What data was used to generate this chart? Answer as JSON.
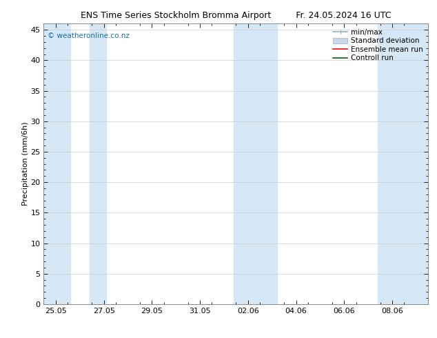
{
  "title_left": "ENS Time Series Stockholm Bromma Airport",
  "title_right": "Fr. 24.05.2024 16 UTC",
  "ylabel": "Precipitation (mm/6h)",
  "yticks": [
    0,
    5,
    10,
    15,
    20,
    25,
    30,
    35,
    40,
    45
  ],
  "ylim": [
    0,
    46
  ],
  "xtick_labels": [
    "25.05",
    "27.05",
    "29.05",
    "31.05",
    "02.06",
    "04.06",
    "06.06",
    "08.06"
  ],
  "xtick_positions": [
    1,
    3,
    5,
    7,
    9,
    11,
    13,
    15
  ],
  "xmin": 0.5,
  "xmax": 16.5,
  "watermark": "© weatheronline.co.nz",
  "watermark_color": "#1a6faf",
  "bg_color": "#ffffff",
  "plot_bg_color": "#ffffff",
  "band_color": "#d6e8f5",
  "bands": [
    [
      0.5,
      1.6
    ],
    [
      2.4,
      3.1
    ],
    [
      8.4,
      9.6
    ],
    [
      9.6,
      10.2
    ],
    [
      14.4,
      16.5
    ]
  ],
  "legend_items": [
    {
      "label": "min/max",
      "color": "#b0c4d8",
      "type": "errorbar"
    },
    {
      "label": "Standard deviation",
      "color": "#c8d8e8",
      "type": "bar"
    },
    {
      "label": "Ensemble mean run",
      "color": "#ff0000",
      "type": "line"
    },
    {
      "label": "Controll run",
      "color": "#008000",
      "type": "line"
    }
  ]
}
